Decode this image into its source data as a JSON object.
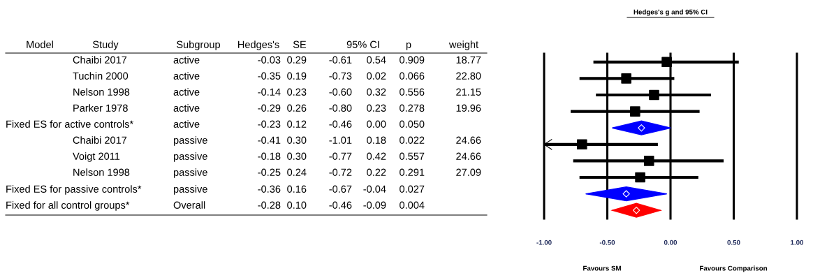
{
  "chart_data": {
    "type": "scatter",
    "orientation": "horizontal",
    "title": "Hedges's g and 95% CI",
    "categories": [
      null,
      null,
      null,
      null,
      null,
      null,
      null,
      null,
      null,
      null
    ],
    "series": [
      {
        "type": "scatter",
        "marker": "square",
        "color": "#000000",
        "values": [
          -0.03,
          -0.35,
          -0.13,
          -0.28,
          null,
          -0.7,
          -0.17,
          -0.24,
          null,
          null
        ],
        "errors": [
          [
            -0.61,
            0.54
          ],
          [
            -0.72,
            0.03
          ],
          [
            -0.59,
            0.32
          ],
          [
            -0.79,
            0.23
          ],
          null,
          [
            -1.0,
            -0.1
          ],
          [
            -0.77,
            0.42
          ],
          [
            -0.72,
            0.22
          ],
          null,
          null
        ]
      },
      {
        "type": "scatter",
        "marker": "diamond",
        "colors": [
          null,
          null,
          null,
          null,
          "#0000ff",
          null,
          null,
          null,
          "#0000ff",
          "#ff0000"
        ],
        "values": [
          null,
          null,
          null,
          null,
          -0.23,
          null,
          null,
          null,
          -0.35,
          -0.27
        ],
        "errors": [
          null,
          null,
          null,
          null,
          [
            -0.46,
            0.0
          ],
          null,
          null,
          null,
          [
            -0.67,
            -0.03
          ],
          [
            -0.46,
            -0.08
          ]
        ]
      }
    ],
    "xlim": [
      -1,
      1
    ],
    "xticks": [
      {
        "value": -1,
        "label": "-1.00"
      },
      {
        "value": -0.5,
        "label": "-0.50"
      },
      {
        "value": 0,
        "label": "0.00"
      },
      {
        "value": 0.5,
        "label": "0.50"
      },
      {
        "value": 1,
        "label": "1.00"
      }
    ],
    "grid": "x",
    "annotations": [
      "Model",
      "Study",
      "Subgroup",
      "Hedges's",
      "SE",
      "95% CI",
      null,
      "p",
      "weight",
      null,
      "Chaibi 2017",
      "active",
      "-0.03",
      "0.29",
      "-0.61",
      "0.54",
      "0.909",
      "18.77",
      null,
      "Tuchin 2000",
      "active",
      "-0.35",
      "0.19",
      "-0.73",
      "0.02",
      "0.066",
      "22.80",
      null,
      "Nelson 1998",
      "active",
      "-0.14",
      "0.23",
      "-0.60",
      "0.32",
      "0.556",
      "21.15",
      null,
      "Parker 1978",
      "active",
      "-0.29",
      "0.26",
      "-0.80",
      "0.23",
      "0.278",
      "19.96",
      "Fixed ES for active controls*",
      null,
      "active",
      "-0.23",
      "0.12",
      "-0.46",
      "0.00",
      "0.050",
      null,
      null,
      "Chaibi 2017",
      "passive",
      "-0.41",
      "0.30",
      "-1.01",
      "0.18",
      "0.022",
      "24.66",
      null,
      "Voigt 2011",
      "passive",
      "-0.18",
      "0.30",
      "-0.77",
      "0.42",
      "0.557",
      "24.66",
      null,
      "Nelson 1998",
      "passive",
      "-0.25",
      "0.24",
      "-0.72",
      "0.22",
      "0.291",
      "27.09",
      "Fixed ES for passive controls*",
      null,
      "passive",
      "-0.36",
      "0.16",
      "-0.67",
      "-0.04",
      "0.027",
      null,
      "Fixed for all control groups*",
      null,
      "Overall",
      "-0.28",
      "0.10",
      "-0.46",
      "-0.09",
      "0.004",
      null,
      "Favours SM",
      "Favours Comparison"
    ]
  }
}
